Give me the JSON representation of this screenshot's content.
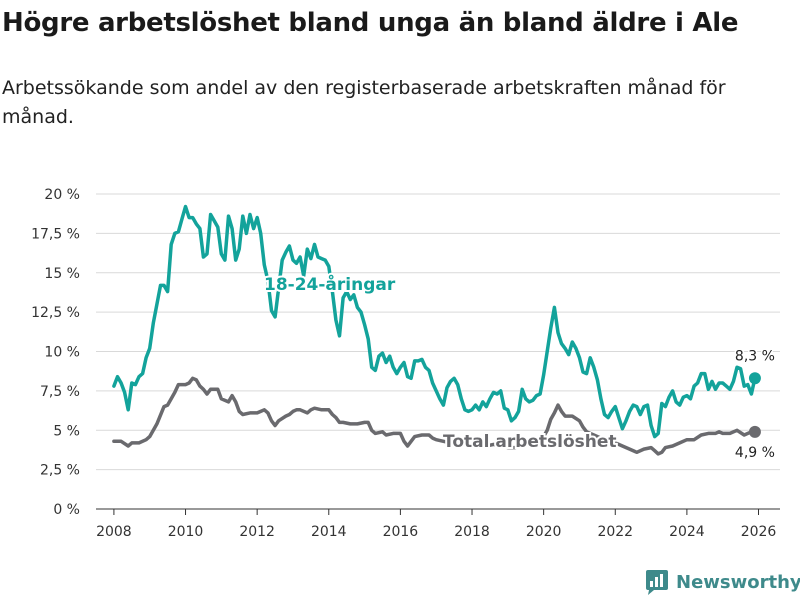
{
  "title": "Högre arbetslöshet bland unga än bland äldre i Ale",
  "subtitle": "Arbetssökande som andel av den registerbaserade arbetskraften månad för månad.",
  "brand": {
    "name": "Newsworthy",
    "icon": "newsworthy-logo-icon",
    "color": "#3e8a8b"
  },
  "chart_data": {
    "type": "line",
    "title": "",
    "xlabel": "",
    "ylabel": "",
    "xlim": [
      2007.5,
      2026.6
    ],
    "ylim": [
      0,
      20
    ],
    "grid": true,
    "x_ticks": [
      2008,
      2010,
      2012,
      2014,
      2016,
      2018,
      2020,
      2022,
      2024,
      2026
    ],
    "x_tick_labels": [
      "2008",
      "2010",
      "2012",
      "2014",
      "2016",
      "2018",
      "2020",
      "2022",
      "2024",
      "2026"
    ],
    "y_ticks": [
      0,
      2.5,
      5,
      7.5,
      10,
      12.5,
      15,
      17.5,
      20
    ],
    "y_tick_labels": [
      "0 %",
      "2,5 %",
      "5 %",
      "7,5 %",
      "10 %",
      "12,5 %",
      "15 %",
      "17,5 %",
      "20 %"
    ],
    "series": [
      {
        "name": "18-24-åringar",
        "color": "#13a39b",
        "label": "18-24-åringar",
        "end_label": "8,3 %",
        "points": [
          [
            2008.0,
            7.8
          ],
          [
            2008.1,
            8.4
          ],
          [
            2008.2,
            8.0
          ],
          [
            2008.3,
            7.4
          ],
          [
            2008.4,
            6.3
          ],
          [
            2008.5,
            8.0
          ],
          [
            2008.6,
            7.9
          ],
          [
            2008.7,
            8.4
          ],
          [
            2008.8,
            8.6
          ],
          [
            2008.9,
            9.6
          ],
          [
            2009.0,
            10.2
          ],
          [
            2009.1,
            11.8
          ],
          [
            2009.2,
            13.0
          ],
          [
            2009.3,
            14.2
          ],
          [
            2009.4,
            14.2
          ],
          [
            2009.5,
            13.8
          ],
          [
            2009.6,
            16.8
          ],
          [
            2009.7,
            17.5
          ],
          [
            2009.8,
            17.6
          ],
          [
            2009.9,
            18.4
          ],
          [
            2010.0,
            19.2
          ],
          [
            2010.1,
            18.5
          ],
          [
            2010.2,
            18.5
          ],
          [
            2010.3,
            18.1
          ],
          [
            2010.4,
            17.8
          ],
          [
            2010.5,
            16.0
          ],
          [
            2010.6,
            16.2
          ],
          [
            2010.7,
            18.7
          ],
          [
            2010.8,
            18.3
          ],
          [
            2010.9,
            17.9
          ],
          [
            2011.0,
            16.2
          ],
          [
            2011.1,
            15.8
          ],
          [
            2011.2,
            18.6
          ],
          [
            2011.3,
            17.8
          ],
          [
            2011.4,
            15.8
          ],
          [
            2011.5,
            16.5
          ],
          [
            2011.6,
            18.6
          ],
          [
            2011.7,
            17.5
          ],
          [
            2011.8,
            18.7
          ],
          [
            2011.9,
            17.8
          ],
          [
            2012.0,
            18.5
          ],
          [
            2012.1,
            17.5
          ],
          [
            2012.2,
            15.5
          ],
          [
            2012.3,
            14.5
          ],
          [
            2012.4,
            12.6
          ],
          [
            2012.5,
            12.2
          ],
          [
            2012.6,
            14.0
          ],
          [
            2012.7,
            15.8
          ],
          [
            2012.8,
            16.3
          ],
          [
            2012.9,
            16.7
          ],
          [
            2013.0,
            15.8
          ],
          [
            2013.1,
            15.6
          ],
          [
            2013.2,
            16.0
          ],
          [
            2013.3,
            14.8
          ],
          [
            2013.4,
            16.5
          ],
          [
            2013.5,
            15.9
          ],
          [
            2013.6,
            16.8
          ],
          [
            2013.7,
            16.0
          ],
          [
            2013.8,
            15.9
          ],
          [
            2013.9,
            15.8
          ],
          [
            2014.0,
            15.4
          ],
          [
            2014.1,
            13.8
          ],
          [
            2014.2,
            12.0
          ],
          [
            2014.3,
            11.0
          ],
          [
            2014.4,
            13.4
          ],
          [
            2014.5,
            13.8
          ],
          [
            2014.6,
            13.3
          ],
          [
            2014.7,
            13.6
          ],
          [
            2014.8,
            12.8
          ],
          [
            2014.9,
            12.5
          ],
          [
            2015.0,
            11.7
          ],
          [
            2015.1,
            10.8
          ],
          [
            2015.2,
            9.0
          ],
          [
            2015.3,
            8.8
          ],
          [
            2015.4,
            9.7
          ],
          [
            2015.5,
            9.9
          ],
          [
            2015.6,
            9.3
          ],
          [
            2015.7,
            9.7
          ],
          [
            2015.8,
            9.0
          ],
          [
            2015.9,
            8.6
          ],
          [
            2016.0,
            9.0
          ],
          [
            2016.1,
            9.3
          ],
          [
            2016.2,
            8.4
          ],
          [
            2016.3,
            8.3
          ],
          [
            2016.4,
            9.4
          ],
          [
            2016.5,
            9.4
          ],
          [
            2016.6,
            9.5
          ],
          [
            2016.7,
            9.0
          ],
          [
            2016.8,
            8.8
          ],
          [
            2016.9,
            8.0
          ],
          [
            2017.0,
            7.5
          ],
          [
            2017.1,
            7.0
          ],
          [
            2017.2,
            6.6
          ],
          [
            2017.3,
            7.7
          ],
          [
            2017.4,
            8.1
          ],
          [
            2017.5,
            8.3
          ],
          [
            2017.6,
            7.9
          ],
          [
            2017.7,
            7.0
          ],
          [
            2017.8,
            6.3
          ],
          [
            2017.9,
            6.2
          ],
          [
            2018.0,
            6.3
          ],
          [
            2018.1,
            6.6
          ],
          [
            2018.2,
            6.3
          ],
          [
            2018.3,
            6.8
          ],
          [
            2018.4,
            6.5
          ],
          [
            2018.5,
            7.0
          ],
          [
            2018.6,
            7.4
          ],
          [
            2018.7,
            7.3
          ],
          [
            2018.8,
            7.5
          ],
          [
            2018.9,
            6.4
          ],
          [
            2019.0,
            6.3
          ],
          [
            2019.1,
            5.6
          ],
          [
            2019.2,
            5.8
          ],
          [
            2019.3,
            6.2
          ],
          [
            2019.4,
            7.6
          ],
          [
            2019.5,
            7.0
          ],
          [
            2019.6,
            6.8
          ],
          [
            2019.7,
            6.9
          ],
          [
            2019.8,
            7.2
          ],
          [
            2019.9,
            7.3
          ],
          [
            2020.0,
            8.5
          ],
          [
            2020.1,
            10.0
          ],
          [
            2020.2,
            11.5
          ],
          [
            2020.3,
            12.8
          ],
          [
            2020.4,
            11.2
          ],
          [
            2020.5,
            10.5
          ],
          [
            2020.6,
            10.2
          ],
          [
            2020.7,
            9.8
          ],
          [
            2020.8,
            10.6
          ],
          [
            2020.9,
            10.2
          ],
          [
            2021.0,
            9.6
          ],
          [
            2021.1,
            8.7
          ],
          [
            2021.2,
            8.6
          ],
          [
            2021.3,
            9.6
          ],
          [
            2021.4,
            9.0
          ],
          [
            2021.5,
            8.2
          ],
          [
            2021.6,
            7.0
          ],
          [
            2021.7,
            6.0
          ],
          [
            2021.8,
            5.8
          ],
          [
            2021.9,
            6.2
          ],
          [
            2022.0,
            6.5
          ],
          [
            2022.1,
            5.8
          ],
          [
            2022.2,
            5.1
          ],
          [
            2022.3,
            5.6
          ],
          [
            2022.4,
            6.2
          ],
          [
            2022.5,
            6.6
          ],
          [
            2022.6,
            6.5
          ],
          [
            2022.7,
            6.0
          ],
          [
            2022.8,
            6.5
          ],
          [
            2022.9,
            6.6
          ],
          [
            2023.0,
            5.3
          ],
          [
            2023.1,
            4.6
          ],
          [
            2023.2,
            4.8
          ],
          [
            2023.3,
            6.7
          ],
          [
            2023.4,
            6.5
          ],
          [
            2023.5,
            7.1
          ],
          [
            2023.6,
            7.5
          ],
          [
            2023.7,
            6.8
          ],
          [
            2023.8,
            6.6
          ],
          [
            2023.9,
            7.1
          ],
          [
            2024.0,
            7.2
          ],
          [
            2024.1,
            7.0
          ],
          [
            2024.2,
            7.8
          ],
          [
            2024.3,
            8.0
          ],
          [
            2024.4,
            8.6
          ],
          [
            2024.5,
            8.6
          ],
          [
            2024.6,
            7.6
          ],
          [
            2024.7,
            8.1
          ],
          [
            2024.8,
            7.6
          ],
          [
            2024.9,
            8.0
          ],
          [
            2025.0,
            8.0
          ],
          [
            2025.1,
            7.8
          ],
          [
            2025.2,
            7.6
          ],
          [
            2025.3,
            8.1
          ],
          [
            2025.4,
            9.0
          ],
          [
            2025.5,
            8.9
          ],
          [
            2025.6,
            7.8
          ],
          [
            2025.7,
            7.9
          ],
          [
            2025.8,
            7.3
          ],
          [
            2025.9,
            8.3
          ]
        ]
      },
      {
        "name": "Total arbetslöshet",
        "color": "#6a6a6e",
        "label": "Total arbetslöshet",
        "end_label": "4,9 %",
        "points": [
          [
            2008.0,
            4.3
          ],
          [
            2008.2,
            4.3
          ],
          [
            2008.4,
            4.0
          ],
          [
            2008.5,
            4.2
          ],
          [
            2008.7,
            4.2
          ],
          [
            2008.9,
            4.4
          ],
          [
            2009.0,
            4.6
          ],
          [
            2009.2,
            5.4
          ],
          [
            2009.4,
            6.5
          ],
          [
            2009.5,
            6.6
          ],
          [
            2009.7,
            7.4
          ],
          [
            2009.8,
            7.9
          ],
          [
            2010.0,
            7.9
          ],
          [
            2010.1,
            8.0
          ],
          [
            2010.2,
            8.3
          ],
          [
            2010.3,
            8.2
          ],
          [
            2010.4,
            7.8
          ],
          [
            2010.5,
            7.6
          ],
          [
            2010.6,
            7.3
          ],
          [
            2010.7,
            7.6
          ],
          [
            2010.9,
            7.6
          ],
          [
            2011.0,
            7.0
          ],
          [
            2011.2,
            6.8
          ],
          [
            2011.3,
            7.2
          ],
          [
            2011.4,
            6.8
          ],
          [
            2011.5,
            6.2
          ],
          [
            2011.6,
            6.0
          ],
          [
            2011.8,
            6.1
          ],
          [
            2012.0,
            6.1
          ],
          [
            2012.1,
            6.2
          ],
          [
            2012.2,
            6.3
          ],
          [
            2012.3,
            6.1
          ],
          [
            2012.4,
            5.6
          ],
          [
            2012.5,
            5.3
          ],
          [
            2012.6,
            5.6
          ],
          [
            2012.8,
            5.9
          ],
          [
            2012.9,
            6.0
          ],
          [
            2013.0,
            6.2
          ],
          [
            2013.1,
            6.3
          ],
          [
            2013.2,
            6.3
          ],
          [
            2013.4,
            6.1
          ],
          [
            2013.5,
            6.3
          ],
          [
            2013.6,
            6.4
          ],
          [
            2013.8,
            6.3
          ],
          [
            2014.0,
            6.3
          ],
          [
            2014.1,
            6.0
          ],
          [
            2014.2,
            5.8
          ],
          [
            2014.3,
            5.5
          ],
          [
            2014.4,
            5.5
          ],
          [
            2014.6,
            5.4
          ],
          [
            2014.8,
            5.4
          ],
          [
            2015.0,
            5.5
          ],
          [
            2015.1,
            5.5
          ],
          [
            2015.2,
            5.0
          ],
          [
            2015.3,
            4.8
          ],
          [
            2015.5,
            4.9
          ],
          [
            2015.6,
            4.7
          ],
          [
            2015.8,
            4.8
          ],
          [
            2016.0,
            4.8
          ],
          [
            2016.1,
            4.3
          ],
          [
            2016.2,
            4.0
          ],
          [
            2016.3,
            4.3
          ],
          [
            2016.4,
            4.6
          ],
          [
            2016.6,
            4.7
          ],
          [
            2016.8,
            4.7
          ],
          [
            2016.9,
            4.5
          ],
          [
            2017.0,
            4.4
          ],
          [
            2017.2,
            4.3
          ],
          [
            2017.4,
            4.2
          ],
          [
            2017.6,
            4.3
          ],
          [
            2017.8,
            4.1
          ],
          [
            2018.0,
            4.0
          ],
          [
            2018.2,
            4.2
          ],
          [
            2018.4,
            4.0
          ],
          [
            2018.6,
            4.1
          ],
          [
            2018.8,
            4.0
          ],
          [
            2019.0,
            3.9
          ],
          [
            2019.2,
            3.9
          ],
          [
            2019.4,
            4.0
          ],
          [
            2019.6,
            4.2
          ],
          [
            2019.8,
            4.2
          ],
          [
            2020.0,
            4.6
          ],
          [
            2020.1,
            5.0
          ],
          [
            2020.2,
            5.7
          ],
          [
            2020.3,
            6.1
          ],
          [
            2020.4,
            6.6
          ],
          [
            2020.5,
            6.2
          ],
          [
            2020.6,
            5.9
          ],
          [
            2020.8,
            5.9
          ],
          [
            2021.0,
            5.6
          ],
          [
            2021.1,
            5.2
          ],
          [
            2021.2,
            4.9
          ],
          [
            2021.4,
            4.7
          ],
          [
            2021.6,
            4.5
          ],
          [
            2021.8,
            4.4
          ],
          [
            2022.0,
            4.2
          ],
          [
            2022.2,
            4.0
          ],
          [
            2022.4,
            3.8
          ],
          [
            2022.6,
            3.6
          ],
          [
            2022.8,
            3.8
          ],
          [
            2023.0,
            3.9
          ],
          [
            2023.1,
            3.7
          ],
          [
            2023.2,
            3.5
          ],
          [
            2023.3,
            3.6
          ],
          [
            2023.4,
            3.9
          ],
          [
            2023.6,
            4.0
          ],
          [
            2023.8,
            4.2
          ],
          [
            2024.0,
            4.4
          ],
          [
            2024.2,
            4.4
          ],
          [
            2024.4,
            4.7
          ],
          [
            2024.6,
            4.8
          ],
          [
            2024.8,
            4.8
          ],
          [
            2024.9,
            4.9
          ],
          [
            2025.0,
            4.8
          ],
          [
            2025.2,
            4.8
          ],
          [
            2025.4,
            5.0
          ],
          [
            2025.6,
            4.7
          ],
          [
            2025.8,
            4.9
          ],
          [
            2025.9,
            4.9
          ]
        ]
      }
    ]
  }
}
